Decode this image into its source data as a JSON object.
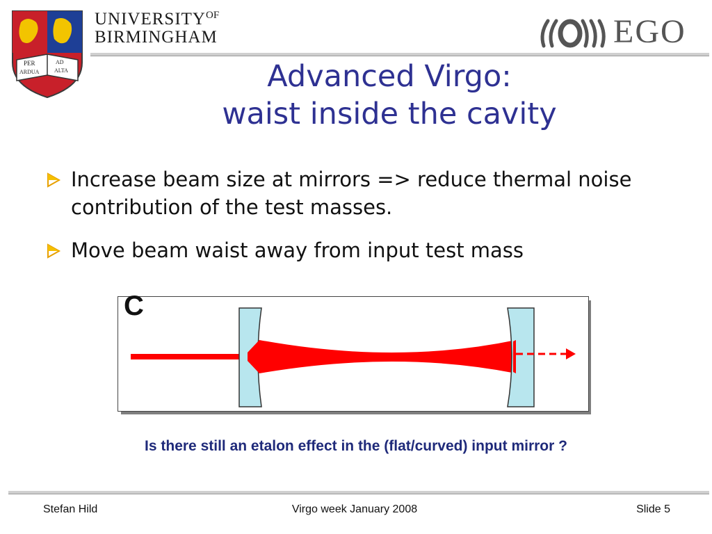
{
  "header": {
    "university_line1": "UNIVERSITY",
    "university_of": "OF",
    "university_line2": "BIRMINGHAM",
    "crest_motto_1": "PER",
    "crest_motto_2": "AD",
    "crest_motto_3": "ARDUA",
    "crest_motto_4": "ALTA",
    "partner_logo_text": "EGO"
  },
  "title": {
    "line1": "Advanced Virgo:",
    "line2": "waist inside the cavity"
  },
  "bullets": [
    {
      "text": "Increase beam size at mirrors => reduce thermal noise contribution of the test masses."
    },
    {
      "text": "Move beam waist away from input test mass"
    }
  ],
  "diagram": {
    "label": "C"
  },
  "question": "Is there still an etalon effect in the (flat/curved) input mirror ?",
  "footer": {
    "author": "Stefan Hild",
    "event": "Virgo week January 2008",
    "slide": "Slide 5"
  },
  "colors": {
    "title": "#2e3192",
    "beam": "#ff0000",
    "mirror": "#b8e6ee",
    "bullet_arrow": "#e8a000"
  }
}
